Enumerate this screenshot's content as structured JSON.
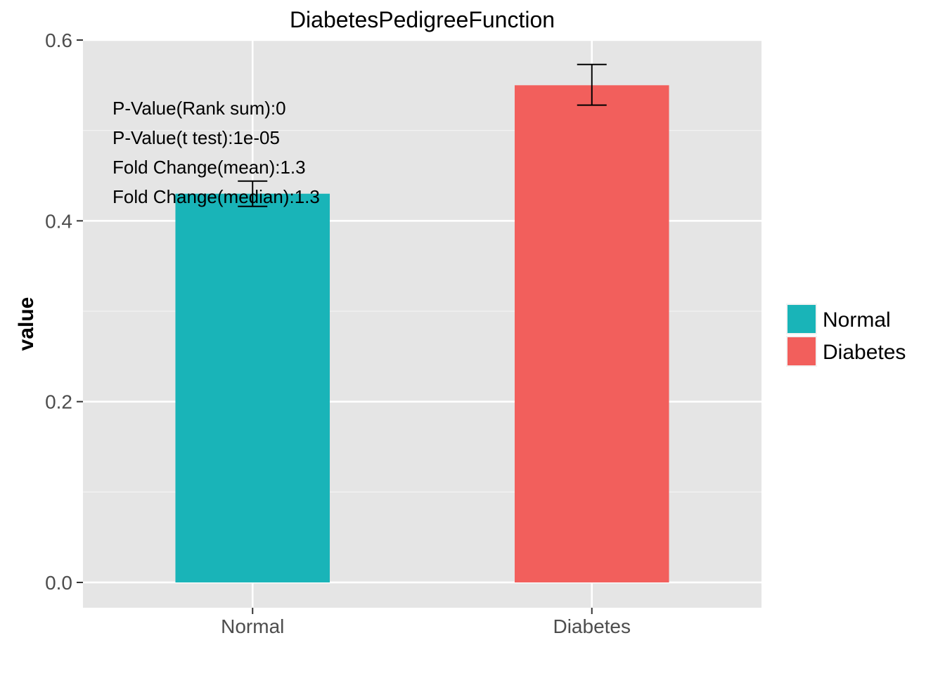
{
  "chart_data": {
    "type": "bar",
    "title": "DiabetesPedigreeFunction",
    "xlabel": "",
    "ylabel": "value",
    "categories": [
      "Normal",
      "Diabetes"
    ],
    "values": [
      0.43,
      0.55
    ],
    "error_bars": [
      {
        "lower": 0.416,
        "upper": 0.444
      },
      {
        "lower": 0.528,
        "upper": 0.573
      }
    ],
    "colors": [
      "#19B4B8",
      "#F25F5C"
    ],
    "ylim": [
      -0.028,
      0.6
    ],
    "yticks": [
      0.0,
      0.2,
      0.4,
      0.6
    ],
    "ytick_labels": [
      "0.0",
      "0.2",
      "0.4",
      "0.6"
    ],
    "yminor_ticks": [
      0.1,
      0.3,
      0.5
    ],
    "grid": true,
    "legend_position": "right",
    "legend": [
      {
        "label": "Normal",
        "color": "#19B4B8"
      },
      {
        "label": "Diabetes",
        "color": "#F25F5C"
      }
    ],
    "annotations": [
      "P-Value(Rank sum):0",
      "P-Value(t test):1e-05",
      "Fold Change(mean):1.3",
      "Fold Change(median):1.3"
    ]
  }
}
